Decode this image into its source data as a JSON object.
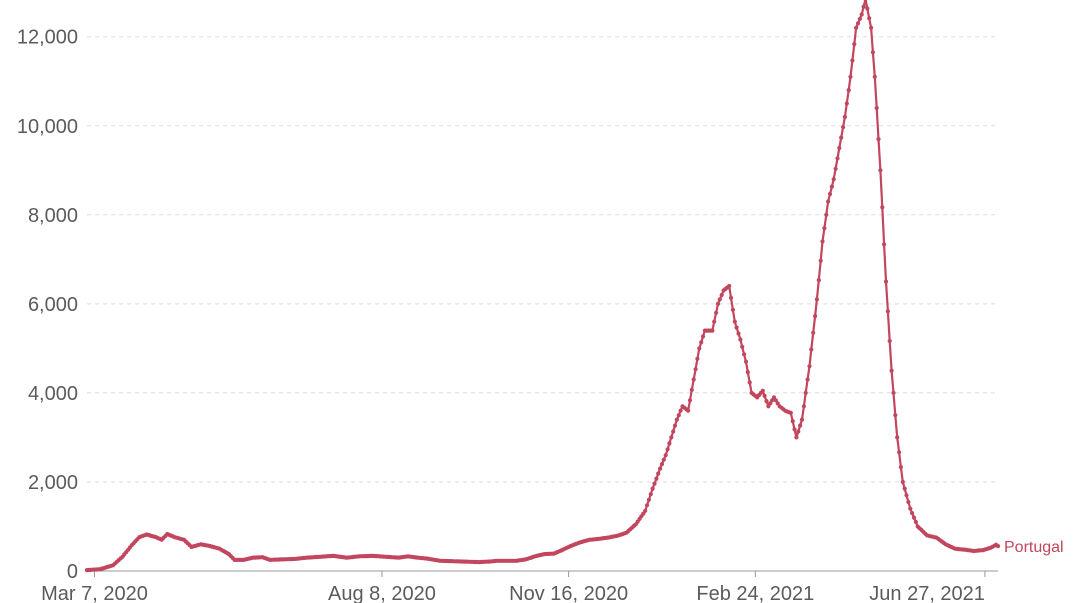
{
  "chart_data": {
    "type": "line",
    "title": "",
    "xlabel": "",
    "ylabel": "",
    "x_start": "2020-03-03",
    "x_end": "2021-07-04",
    "ylim": [
      0,
      12600
    ],
    "y_ticks": [
      0,
      2000,
      4000,
      6000,
      8000,
      10000,
      12000
    ],
    "y_tick_labels": [
      "0",
      "2,000",
      "4,000",
      "6,000",
      "8,000",
      "10,000",
      "12,000"
    ],
    "x_ticks": [
      {
        "date": "2020-03-07",
        "label": "Mar 7, 2020"
      },
      {
        "date": "2020-08-08",
        "label": "Aug 8, 2020"
      },
      {
        "date": "2020-11-16",
        "label": "Nov 16, 2020"
      },
      {
        "date": "2021-02-24",
        "label": "Feb 24, 2021"
      },
      {
        "date": "2021-06-27",
        "label": "Jun 27, 2021"
      }
    ],
    "grid": true,
    "legend": "right-end label",
    "series": [
      {
        "name": "Portugal",
        "color": "#c1465e",
        "points": [
          [
            "2020-03-03",
            20
          ],
          [
            "2020-03-10",
            40
          ],
          [
            "2020-03-17",
            130
          ],
          [
            "2020-03-22",
            320
          ],
          [
            "2020-03-27",
            580
          ],
          [
            "2020-03-31",
            760
          ],
          [
            "2020-04-04",
            820
          ],
          [
            "2020-04-09",
            760
          ],
          [
            "2020-04-12",
            700
          ],
          [
            "2020-04-15",
            830
          ],
          [
            "2020-04-19",
            760
          ],
          [
            "2020-04-24",
            700
          ],
          [
            "2020-04-28",
            540
          ],
          [
            "2020-05-03",
            600
          ],
          [
            "2020-05-08",
            560
          ],
          [
            "2020-05-13",
            500
          ],
          [
            "2020-05-18",
            380
          ],
          [
            "2020-05-21",
            250
          ],
          [
            "2020-05-26",
            250
          ],
          [
            "2020-05-31",
            300
          ],
          [
            "2020-06-05",
            310
          ],
          [
            "2020-06-09",
            250
          ],
          [
            "2020-06-15",
            260
          ],
          [
            "2020-06-22",
            270
          ],
          [
            "2020-06-29",
            300
          ],
          [
            "2020-07-06",
            320
          ],
          [
            "2020-07-13",
            340
          ],
          [
            "2020-07-20",
            300
          ],
          [
            "2020-07-27",
            330
          ],
          [
            "2020-08-03",
            340
          ],
          [
            "2020-08-10",
            320
          ],
          [
            "2020-08-17",
            300
          ],
          [
            "2020-08-22",
            330
          ],
          [
            "2020-08-27",
            300
          ],
          [
            "2020-09-01",
            280
          ],
          [
            "2020-09-08",
            230
          ],
          [
            "2020-09-15",
            220
          ],
          [
            "2020-09-22",
            210
          ],
          [
            "2020-09-29",
            200
          ],
          [
            "2020-10-04",
            210
          ],
          [
            "2020-10-09",
            230
          ],
          [
            "2020-10-14",
            230
          ],
          [
            "2020-10-19",
            230
          ],
          [
            "2020-10-24",
            260
          ],
          [
            "2020-10-29",
            330
          ],
          [
            "2020-11-03",
            380
          ],
          [
            "2020-11-08",
            390
          ],
          [
            "2020-11-12",
            460
          ],
          [
            "2020-11-17",
            560
          ],
          [
            "2020-11-22",
            640
          ],
          [
            "2020-11-27",
            700
          ],
          [
            "2020-12-02",
            720
          ],
          [
            "2020-12-07",
            750
          ],
          [
            "2020-12-12",
            790
          ],
          [
            "2020-12-17",
            860
          ],
          [
            "2020-12-22",
            1050
          ],
          [
            "2020-12-27",
            1350
          ],
          [
            "2020-12-31",
            1850
          ],
          [
            "2021-01-04",
            2300
          ],
          [
            "2021-01-07",
            2600
          ],
          [
            "2021-01-10",
            3000
          ],
          [
            "2021-01-13",
            3400
          ],
          [
            "2021-01-16",
            3700
          ],
          [
            "2021-01-19",
            3600
          ],
          [
            "2021-01-22",
            4300
          ],
          [
            "2021-01-25",
            5000
          ],
          [
            "2021-01-28",
            5400
          ],
          [
            "2021-02-01",
            5400
          ],
          [
            "2021-02-04",
            6000
          ],
          [
            "2021-02-07",
            6300
          ],
          [
            "2021-02-10",
            6400
          ],
          [
            "2021-02-13",
            5600
          ],
          [
            "2021-02-16",
            5200
          ],
          [
            "2021-02-19",
            4700
          ],
          [
            "2021-02-22",
            4000
          ],
          [
            "2021-02-25",
            3900
          ],
          [
            "2021-02-28",
            4050
          ],
          [
            "2021-03-03",
            3700
          ],
          [
            "2021-03-06",
            3900
          ],
          [
            "2021-03-09",
            3700
          ],
          [
            "2021-03-12",
            3600
          ],
          [
            "2021-03-15",
            3550
          ],
          [
            "2021-03-18",
            3000
          ],
          [
            "2021-03-21",
            3400
          ],
          [
            "2021-03-25",
            4600
          ],
          [
            "2021-03-29",
            6100
          ],
          [
            "2021-04-01",
            7400
          ],
          [
            "2021-04-04",
            8300
          ],
          [
            "2021-04-07",
            8800
          ],
          [
            "2021-04-10",
            9500
          ],
          [
            "2021-04-13",
            10200
          ],
          [
            "2021-04-16",
            11100
          ],
          [
            "2021-04-19",
            12200
          ],
          [
            "2021-04-22",
            12500
          ],
          [
            "2021-04-24",
            12850
          ],
          [
            "2021-04-27",
            12200
          ],
          [
            "2021-04-29",
            11100
          ],
          [
            "2021-05-02",
            9000
          ],
          [
            "2021-05-05",
            6500
          ],
          [
            "2021-05-08",
            4500
          ],
          [
            "2021-05-11",
            3000
          ],
          [
            "2021-05-14",
            2000
          ],
          [
            "2021-05-18",
            1400
          ],
          [
            "2021-05-22",
            1000
          ],
          [
            "2021-05-27",
            800
          ],
          [
            "2021-06-01",
            750
          ],
          [
            "2021-06-06",
            600
          ],
          [
            "2021-06-11",
            500
          ],
          [
            "2021-06-16",
            480
          ],
          [
            "2021-06-21",
            450
          ],
          [
            "2021-06-26",
            470
          ],
          [
            "2021-06-30",
            520
          ],
          [
            "2021-07-03",
            590
          ],
          [
            "2021-07-04",
            560
          ]
        ]
      }
    ]
  }
}
